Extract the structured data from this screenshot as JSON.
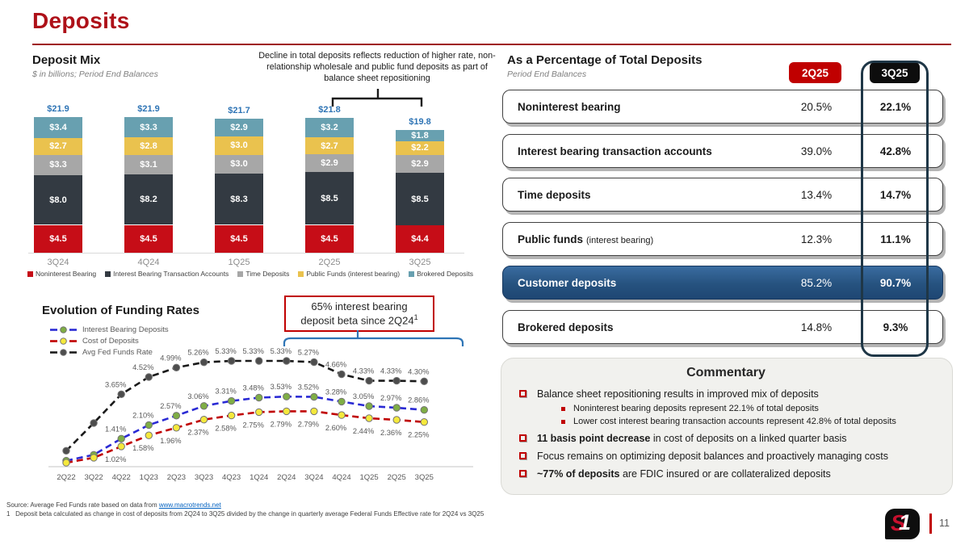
{
  "page_title": "Deposits",
  "deposit_mix": {
    "title": "Deposit Mix",
    "subtitle": "$ in billions; Period End Balances",
    "annotation": "Decline in total deposits reflects reduction of higher rate, non-relationship wholesale and public fund deposits as part of balance sheet repositioning"
  },
  "funding_rates": {
    "title": "Evolution of Funding Rates",
    "callout_line1": "65% interest bearing",
    "callout_line2": "deposit beta since 2Q24",
    "callout_sup": "1"
  },
  "chart_data": [
    {
      "type": "bar",
      "stacked": true,
      "title": "Deposit Mix",
      "subtitle": "$ in billions; Period End Balances",
      "categories": [
        "3Q24",
        "4Q24",
        "1Q25",
        "2Q25",
        "3Q25"
      ],
      "totals": [
        21.9,
        21.9,
        21.7,
        21.8,
        19.8
      ],
      "total_labels": [
        "$21.9",
        "$21.9",
        "$21.7",
        "$21.8",
        "$19.8"
      ],
      "unit": "$ billions",
      "series": [
        {
          "name": "Noninterest Bearing",
          "color": "#C60D17",
          "values": [
            4.5,
            4.5,
            4.5,
            4.5,
            4.4
          ]
        },
        {
          "name": "Interest Bearing Transaction Accounts",
          "color": "#333A42",
          "values": [
            8.0,
            8.2,
            8.3,
            8.5,
            8.5
          ]
        },
        {
          "name": "Time Deposits",
          "color": "#A7A7A7",
          "values": [
            3.3,
            3.1,
            3.0,
            2.9,
            2.9
          ]
        },
        {
          "name": "Public Funds (interest bearing)",
          "color": "#EAC24E",
          "values": [
            2.7,
            2.8,
            3.0,
            2.7,
            2.2
          ]
        },
        {
          "name": "Brokered Deposits",
          "color": "#68A0B0",
          "values": [
            3.4,
            3.3,
            2.9,
            3.2,
            1.8
          ]
        }
      ]
    },
    {
      "type": "line",
      "title": "Evolution of Funding Rates",
      "x": [
        "2Q22",
        "3Q22",
        "4Q22",
        "1Q23",
        "2Q23",
        "3Q23",
        "4Q23",
        "1Q24",
        "2Q24",
        "3Q24",
        "4Q24",
        "1Q25",
        "2Q25",
        "3Q25"
      ],
      "ylim": [
        0,
        6
      ],
      "grid": false,
      "legend_position": "top-left",
      "series": [
        {
          "name": "Interest Bearing Deposits",
          "line_color": "#2A2AD4",
          "dot_color": "#7FAE45",
          "label_side": "above",
          "values": [
            0.3,
            0.6,
            1.41,
            2.1,
            2.57,
            3.06,
            3.31,
            3.48,
            3.53,
            3.52,
            3.28,
            3.05,
            2.97,
            2.86
          ],
          "labels": [
            "",
            "",
            "1.41%",
            "2.10%",
            "2.57%",
            "3.06%",
            "3.31%",
            "3.48%",
            "3.53%",
            "3.52%",
            "3.28%",
            "3.05%",
            "2.97%",
            "2.86%"
          ]
        },
        {
          "name": "Cost of Deposits",
          "line_color": "#C00000",
          "dot_color": "#F5E93C",
          "label_side": "below",
          "values": [
            0.2,
            0.45,
            1.02,
            1.58,
            1.96,
            2.37,
            2.58,
            2.75,
            2.79,
            2.79,
            2.6,
            2.44,
            2.36,
            2.25
          ],
          "labels": [
            "",
            "",
            "1.02%",
            "1.58%",
            "1.96%",
            "2.37%",
            "2.58%",
            "2.75%",
            "2.79%",
            "2.79%",
            "2.60%",
            "2.44%",
            "2.36%",
            "2.25%"
          ]
        },
        {
          "name": "Avg Fed Funds Rate",
          "line_color": "#1A1A1A",
          "dot_color": "#4D4D4D",
          "label_side": "above",
          "values": [
            0.8,
            2.2,
            3.65,
            4.52,
            4.99,
            5.26,
            5.33,
            5.33,
            5.33,
            5.27,
            4.66,
            4.33,
            4.33,
            4.3
          ],
          "labels": [
            "",
            "",
            "3.65%",
            "4.52%",
            "4.99%",
            "5.26%",
            "5.33%",
            "5.33%",
            "5.33%",
            "5.27%",
            "4.66%",
            "4.33%",
            "4.33%",
            "4.30%"
          ]
        }
      ]
    }
  ],
  "table": {
    "title": "As a Percentage of Total Deposits",
    "subtitle": "Period End Balances",
    "badges": [
      "2Q25",
      "3Q25"
    ],
    "rows": [
      {
        "label": "Noninterest bearing",
        "suffix": "",
        "q2": "20.5%",
        "q3": "22.1%",
        "highlight": false
      },
      {
        "label": "Interest bearing transaction accounts",
        "suffix": "",
        "q2": "39.0%",
        "q3": "42.8%",
        "highlight": false
      },
      {
        "label": "Time deposits",
        "suffix": "",
        "q2": "13.4%",
        "q3": "14.7%",
        "highlight": false
      },
      {
        "label": "Public funds",
        "suffix": "(interest bearing)",
        "q2": "12.3%",
        "q3": "11.1%",
        "highlight": false
      },
      {
        "label": "Customer deposits",
        "suffix": "",
        "q2": "85.2%",
        "q3": "90.7%",
        "highlight": true
      },
      {
        "label": "Brokered deposits",
        "suffix": "",
        "q2": "14.8%",
        "q3": "9.3%",
        "highlight": false
      }
    ]
  },
  "commentary": {
    "title": "Commentary",
    "items": [
      {
        "bold": "",
        "rest": "Balance sheet repositioning results in improved mix of deposits",
        "subs": [
          "Noninterest bearing deposits represent 22.1% of total deposits",
          "Lower cost interest bearing transaction accounts represent 42.8% of total deposits"
        ]
      },
      {
        "bold": "11 basis point decrease",
        "rest": " in cost of deposits on a linked quarter basis",
        "subs": []
      },
      {
        "bold": "",
        "rest": "Focus remains on optimizing deposit balances and proactively managing costs",
        "subs": []
      },
      {
        "bold": "~77% of deposits",
        "rest": " are FDIC insured or are collateralized deposits",
        "subs": []
      }
    ]
  },
  "footer": {
    "source_prefix": "Source: Average Fed Funds rate based on data from ",
    "source_link": "www.macrotrends.net",
    "footnote": "1   Deposit beta calculated as change in cost of deposits from 2Q24 to 3Q25 divided by the change in quarterly average Federal Funds Effective rate for 2Q24 vs 3Q25",
    "page_number": "11"
  },
  "logo": {
    "letter_s": "S",
    "letter_one": "1"
  },
  "colors": {
    "accent_red": "#AE1119",
    "badge_red": "#C00000",
    "badge_black": "#0D0D0D",
    "highlight_row_blue": "#26527F",
    "total_label_blue": "#2E74B5",
    "column_outline": "#1F3747"
  }
}
